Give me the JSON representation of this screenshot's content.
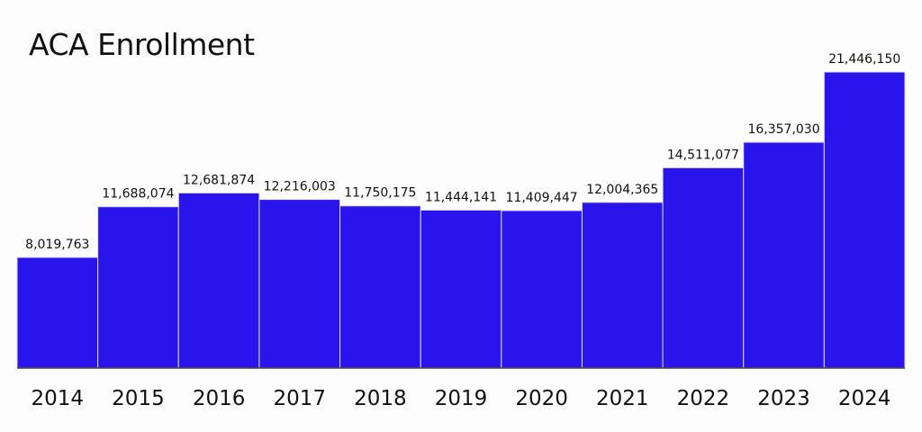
{
  "chart_data": {
    "type": "bar",
    "title": "ACA Enrollment",
    "xlabel": "",
    "ylabel": "",
    "categories": [
      "2014",
      "2015",
      "2016",
      "2017",
      "2018",
      "2019",
      "2020",
      "2021",
      "2022",
      "2023",
      "2024"
    ],
    "values": [
      8019763,
      11688074,
      12681874,
      12216003,
      11750175,
      11444141,
      11409447,
      12004365,
      14511077,
      16357030,
      21446150
    ],
    "value_labels": [
      "8,019,763",
      "11,688,074",
      "12,681,874",
      "12,216,003",
      "11,750,175",
      "11,444,141",
      "11,409,447",
      "12,004,365",
      "14,511,077",
      "16,357,030",
      "21,446,150"
    ],
    "ylim": [
      0,
      21446150
    ],
    "grid": false,
    "legend": "none",
    "bar_color": "#2a14ec",
    "baseline_color": "#4a4a4a"
  }
}
